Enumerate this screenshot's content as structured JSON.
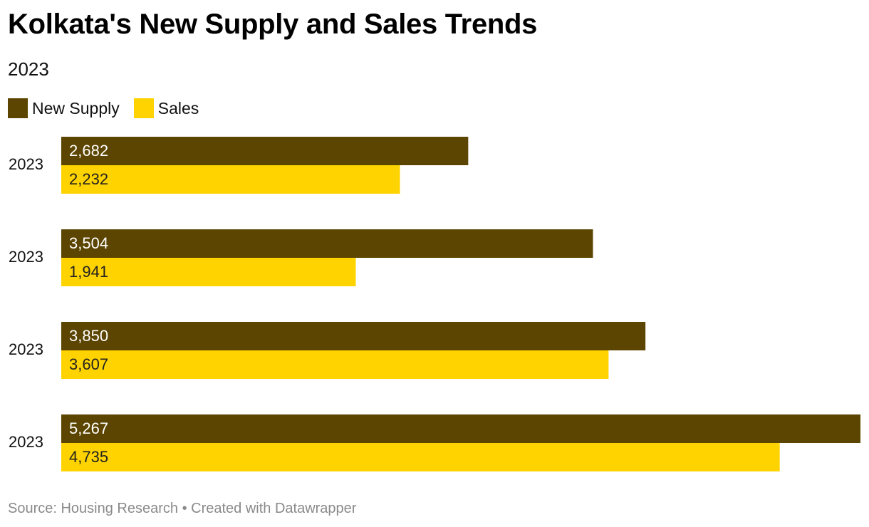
{
  "title": "Kolkata's New Supply and Sales Trends",
  "subtitle": "2023",
  "legend": [
    {
      "label": "New Supply",
      "color": "#5c4500"
    },
    {
      "label": "Sales",
      "color": "#ffd300"
    }
  ],
  "footer": "Source: Housing Research • Created with Datawrapper",
  "chart_data": {
    "type": "bar",
    "orientation": "horizontal",
    "title": "Kolkata's New Supply and Sales Trends",
    "subtitle": "2023",
    "categories": [
      "2023",
      "2023",
      "2023",
      "2023"
    ],
    "series": [
      {
        "name": "New Supply",
        "color": "#5c4500",
        "label_color": "#ffffff",
        "values": [
          2682,
          3504,
          3850,
          5267
        ],
        "labels": [
          "2,682",
          "3,504",
          "3,850",
          "5,267"
        ]
      },
      {
        "name": "Sales",
        "color": "#ffd300",
        "label_color": "#222222",
        "values": [
          2232,
          1941,
          3607,
          4735
        ],
        "labels": [
          "2,232",
          "1,941",
          "3,607",
          "4,735"
        ]
      }
    ],
    "xlim": [
      0,
      5267
    ],
    "grid": false,
    "legend_position": "top-left"
  }
}
